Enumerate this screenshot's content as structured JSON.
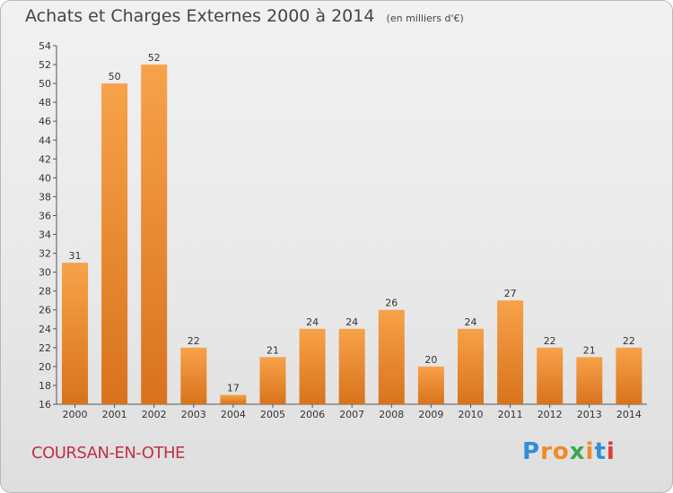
{
  "chart_data": {
    "type": "bar",
    "title": "Achats et Charges Externes 2000 à 2014",
    "unit": "(en milliers d'€)",
    "categories": [
      "2000",
      "2001",
      "2002",
      "2003",
      "2004",
      "2005",
      "2006",
      "2007",
      "2008",
      "2009",
      "2010",
      "2011",
      "2012",
      "2013",
      "2014"
    ],
    "values": [
      31,
      50,
      52,
      22,
      17,
      21,
      24,
      24,
      26,
      20,
      24,
      27,
      22,
      21,
      22
    ],
    "ylim": [
      16,
      54
    ],
    "yticks": [
      16,
      18,
      20,
      22,
      24,
      26,
      28,
      30,
      32,
      34,
      36,
      38,
      40,
      42,
      44,
      46,
      48,
      50,
      52,
      54
    ],
    "grid": false,
    "bar_color": "#f08a2a"
  },
  "town": "COURSAN-EN-OTHE",
  "logo": {
    "letters": [
      "P",
      "r",
      "o",
      "x",
      "i",
      "t",
      "i"
    ],
    "colors": [
      "#2f8fd8",
      "#f08a2a",
      "#f08a2a",
      "#3aa84a",
      "#f08a2a",
      "#2f8fd8",
      "#e23a3a"
    ]
  }
}
